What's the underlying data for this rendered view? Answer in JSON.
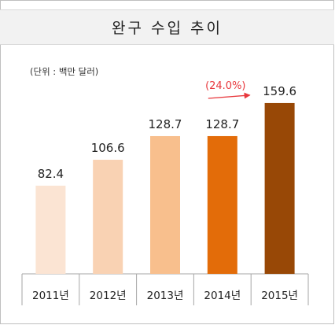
{
  "chart_data": {
    "type": "bar",
    "title": "완구 수입 추이",
    "unit_note": "(단위 : 백만 달러)",
    "categories": [
      "2011년",
      "2012년",
      "2013년",
      "2014년",
      "2015년"
    ],
    "values": [
      82.4,
      106.6,
      128.7,
      128.7,
      159.6
    ],
    "value_labels": [
      "82.4",
      "106.6",
      "128.7",
      "128.7",
      "159.6"
    ],
    "bar_colors": [
      "#fbe4d3",
      "#f9d2b3",
      "#f8bf8d",
      "#e36c09",
      "#984806"
    ],
    "ylim": [
      0,
      175
    ],
    "grid": false,
    "annotation": {
      "text": "(24.0%)",
      "from_category": "2014년",
      "to_category": "2015년",
      "color": "#e8383d"
    }
  }
}
